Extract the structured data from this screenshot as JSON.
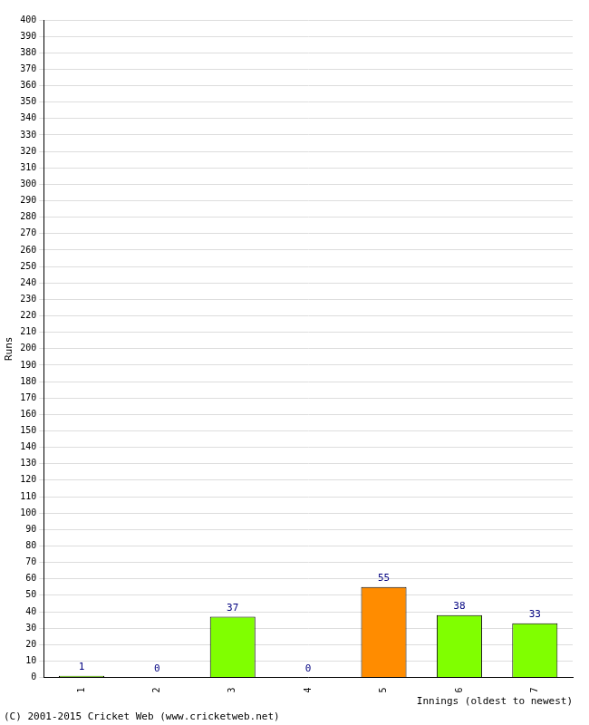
{
  "chart_data": {
    "type": "bar",
    "categories": [
      "1",
      "2",
      "3",
      "4",
      "5",
      "6",
      "7"
    ],
    "values": [
      1,
      0,
      37,
      0,
      55,
      38,
      33
    ],
    "colors": [
      "#80ff00",
      "#80ff00",
      "#80ff00",
      "#80ff00",
      "#ff8c00",
      "#80ff00",
      "#80ff00"
    ],
    "xlabel": "Innings (oldest to newest)",
    "ylabel": "Runs",
    "ylim": [
      0,
      400
    ],
    "yticks": [
      0,
      10,
      20,
      30,
      40,
      50,
      60,
      70,
      80,
      90,
      100,
      110,
      120,
      130,
      140,
      150,
      160,
      170,
      180,
      190,
      200,
      210,
      220,
      230,
      240,
      250,
      260,
      270,
      280,
      290,
      300,
      310,
      320,
      330,
      340,
      350,
      360,
      370,
      380,
      390,
      400
    ],
    "grid": true,
    "data_labels": true,
    "annotations": [
      "(C) 2001-2015 Cricket Web (www.cricketweb.net)"
    ]
  }
}
